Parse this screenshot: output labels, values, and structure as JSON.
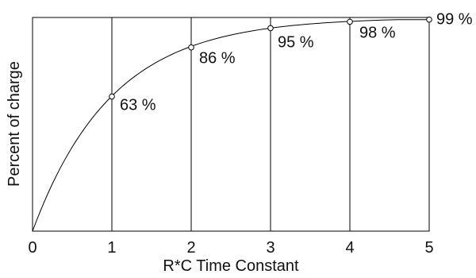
{
  "chart_data": {
    "type": "line",
    "title": "",
    "xlabel": "R*C Time Constant",
    "ylabel": "Percent of charge",
    "xlim": [
      0,
      5
    ],
    "ylim": [
      0,
      100
    ],
    "x_ticks": [
      "0",
      "1",
      "2",
      "3",
      "4",
      "5"
    ],
    "x_tick_values": [
      0,
      1,
      2,
      3,
      4,
      5
    ],
    "grid": "vertical",
    "legend": "none",
    "series": [
      {
        "x": [
          0,
          1,
          2,
          3,
          4,
          5
        ],
        "y": [
          0,
          63,
          86,
          95,
          98,
          99
        ],
        "labels": [
          "",
          "63 %",
          "86 %",
          "95 %",
          "98 %",
          "99 %"
        ]
      }
    ],
    "colors": {
      "line": "#000000",
      "grid": "#000000",
      "frame": "#000000"
    }
  }
}
